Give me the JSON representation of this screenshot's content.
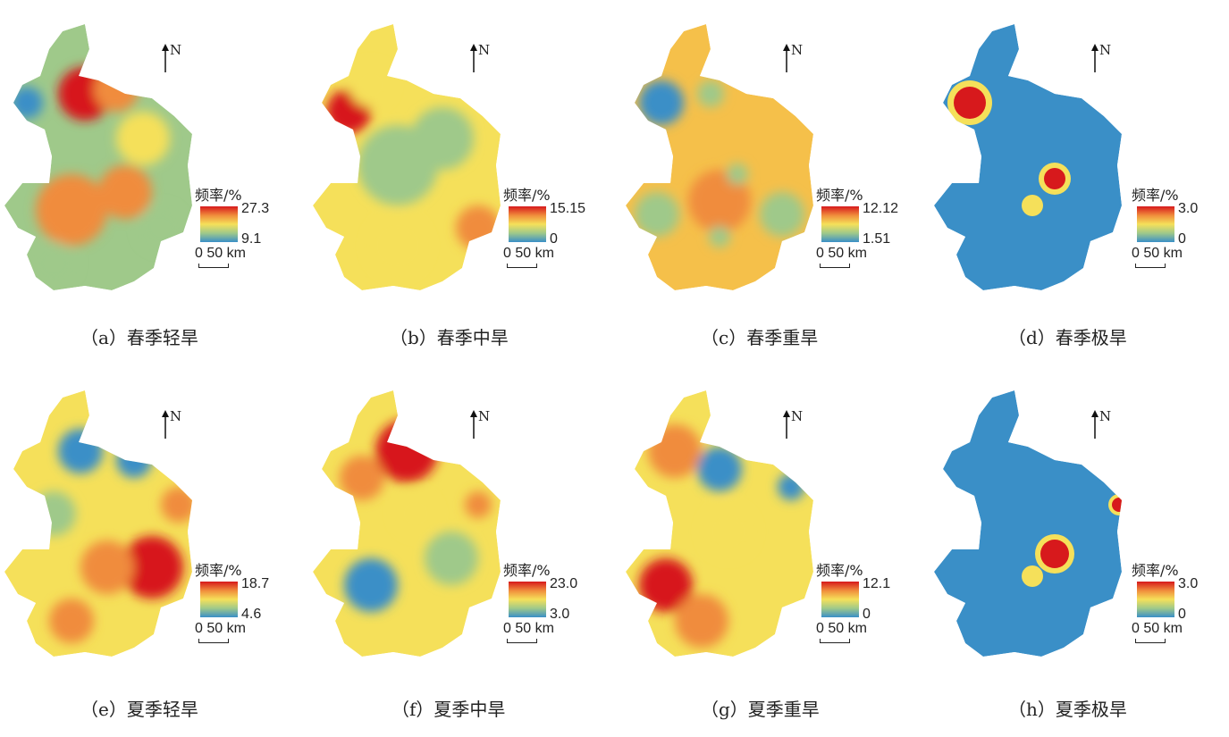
{
  "north_label": "N",
  "legend_title": "频率/%",
  "scale_label": "0  50 km",
  "palette": {
    "high": "#d7191c",
    "mid_high": "#f08c3c",
    "mid": "#f5e05a",
    "mid_low": "#9fc98a",
    "low": "#3a8fc7"
  },
  "panels": [
    {
      "caption": "（a）春季轻旱",
      "max": "27.3",
      "min": "9.1"
    },
    {
      "caption": "（b）春季中旱",
      "max": "15.15",
      "min": "0"
    },
    {
      "caption": "（c）春季重旱",
      "max": "12.12",
      "min": "1.51"
    },
    {
      "caption": "（d）春季极旱",
      "max": "3.0",
      "min": "0"
    },
    {
      "caption": "（e）夏季轻旱",
      "max": "18.7",
      "min": "4.6"
    },
    {
      "caption": "（f）夏季中旱",
      "max": "23.0",
      "min": "3.0"
    },
    {
      "caption": "（g）夏季重旱",
      "max": "12.1",
      "min": "0"
    },
    {
      "caption": "（h）夏季极旱",
      "max": "3.0",
      "min": "0"
    }
  ]
}
